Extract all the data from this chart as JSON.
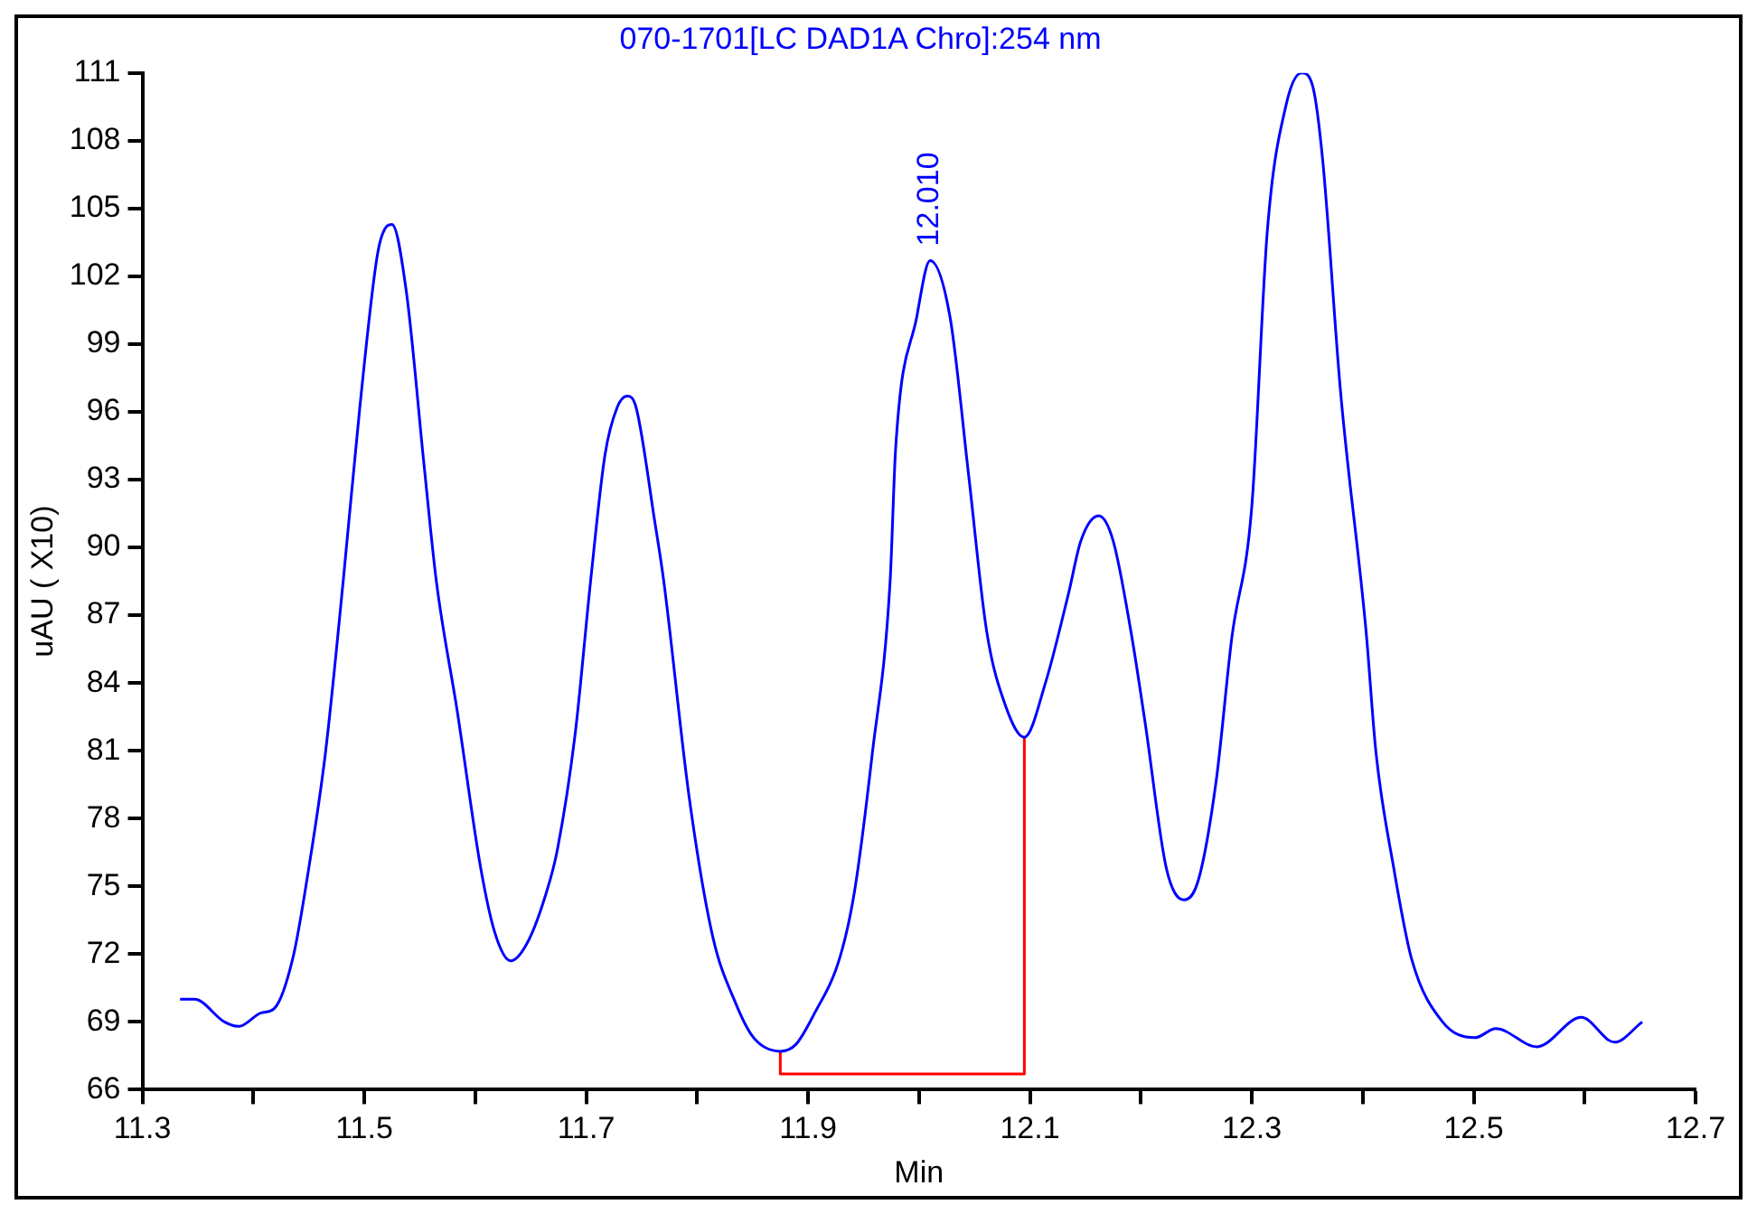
{
  "chart_data": {
    "type": "line",
    "title": "070-1701[LC DAD1A Chro]:254 nm",
    "xlabel": "Min",
    "ylabel": "uAU ( X10)",
    "xlim": [
      11.3,
      12.7
    ],
    "xticks": [
      11.3,
      {
        "value": 11.4,
        "label": null
      },
      11.5,
      {
        "value": 11.6,
        "label": null
      },
      11.7,
      {
        "value": 11.8,
        "label": null
      },
      11.9,
      {
        "value": 12.0,
        "label": null
      },
      12.1,
      {
        "value": 12.2,
        "label": null
      },
      12.3,
      {
        "value": 12.4,
        "label": null
      },
      12.5,
      {
        "value": 12.6,
        "label": null
      },
      12.7
    ],
    "ylim": [
      66,
      111
    ],
    "yticks": [
      66,
      69,
      72,
      75,
      78,
      81,
      84,
      87,
      90,
      93,
      96,
      99,
      102,
      105,
      108,
      111
    ],
    "legend": false,
    "marker": "none",
    "line_style": "solid",
    "annotations": [
      {
        "text": "12.010",
        "x": 12.01,
        "y": 102.7
      }
    ],
    "series": [
      {
        "color": "#0000ff",
        "x": [
          11.334,
          11.347,
          11.374,
          11.387,
          11.407,
          11.419,
          11.436,
          11.449,
          11.465,
          11.481,
          11.496,
          11.512,
          11.52,
          11.525,
          11.538,
          11.554,
          11.565,
          11.584,
          11.605,
          11.618,
          11.632,
          11.647,
          11.664,
          11.674,
          11.69,
          11.704,
          11.717,
          11.728,
          11.737,
          11.745,
          11.762,
          11.77,
          11.793,
          11.814,
          11.835,
          11.851,
          11.875,
          11.889,
          11.905,
          11.929,
          11.942,
          11.958,
          11.974,
          11.979,
          11.998,
          12.01,
          12.028,
          12.045,
          12.061,
          12.078,
          12.095,
          12.114,
          12.135,
          12.146,
          12.162,
          12.175,
          12.191,
          12.204,
          12.223,
          12.239,
          12.252,
          12.268,
          12.282,
          12.3,
          12.314,
          12.331,
          12.345,
          12.355,
          12.364,
          12.38,
          12.403,
          12.412,
          12.428,
          12.444,
          12.472,
          12.501,
          12.52,
          12.557,
          12.597,
          12.627,
          12.652
        ],
        "values": [
          70.0,
          70.0,
          69.0,
          68.8,
          69.4,
          69.6,
          71.9,
          75.5,
          80.9,
          88.5,
          96.2,
          103.0,
          104.2,
          104.3,
          101.3,
          93.6,
          88.5,
          82.7,
          75.8,
          72.9,
          71.7,
          72.5,
          74.7,
          76.6,
          81.7,
          88.5,
          94.1,
          96.2,
          96.7,
          96.2,
          91.1,
          88.5,
          78.9,
          72.8,
          69.8,
          68.3,
          67.7,
          68.0,
          69.3,
          71.9,
          74.8,
          80.9,
          88.5,
          94.4,
          100.2,
          102.7,
          100.2,
          93.1,
          86.3,
          83.0,
          81.6,
          84.0,
          88.0,
          90.3,
          91.4,
          90.3,
          86.3,
          82.2,
          75.8,
          74.4,
          75.3,
          79.7,
          86.0,
          91.8,
          104.0,
          109.6,
          111.0,
          110.4,
          107.1,
          96.9,
          86.3,
          80.9,
          75.8,
          71.8,
          69.0,
          68.3,
          68.7,
          67.9,
          69.2,
          68.1,
          69.0
        ]
      },
      {
        "color": "#ff0000",
        "x": [
          11.875,
          11.875,
          12.095,
          12.095
        ],
        "values": [
          67.7,
          66.7,
          66.7,
          81.6
        ]
      }
    ]
  }
}
